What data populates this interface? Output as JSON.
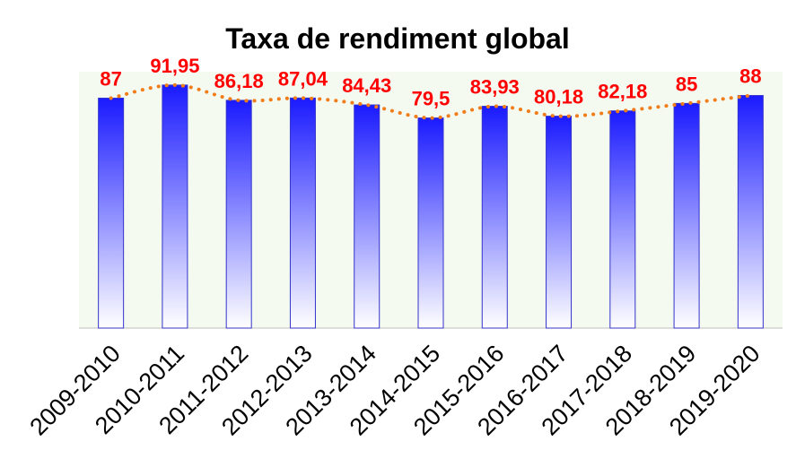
{
  "chart_data": {
    "type": "bar",
    "title": "Taxa de rendiment global",
    "xlabel": "",
    "ylabel": "",
    "categories": [
      "2009-2010",
      "2010-2011",
      "2011-2012",
      "2012-2013",
      "2013-2014",
      "2014-2015",
      "2015-2016",
      "2016-2017",
      "2017-2018",
      "2018-2019",
      "2019-2020"
    ],
    "values": [
      87,
      91.95,
      86.18,
      87.04,
      84.43,
      79.5,
      83.93,
      80.18,
      82.18,
      85,
      88
    ],
    "data_labels": [
      "87",
      "91,95",
      "86,18",
      "87,04",
      "84,43",
      "79,5",
      "83,93",
      "80,18",
      "82,18",
      "85",
      "88"
    ],
    "ylim": [
      0,
      97
    ],
    "grid": false,
    "legend": "none",
    "overlay": "dotted trend line through bar tops",
    "colors": {
      "bar_top": "#1a1aff",
      "bar_bottom": "#ffffff",
      "bar_border": "#3333cc",
      "trend_line": "#f07c1a",
      "data_label": "#ff0000",
      "plot_background": "#f4faf0"
    }
  }
}
